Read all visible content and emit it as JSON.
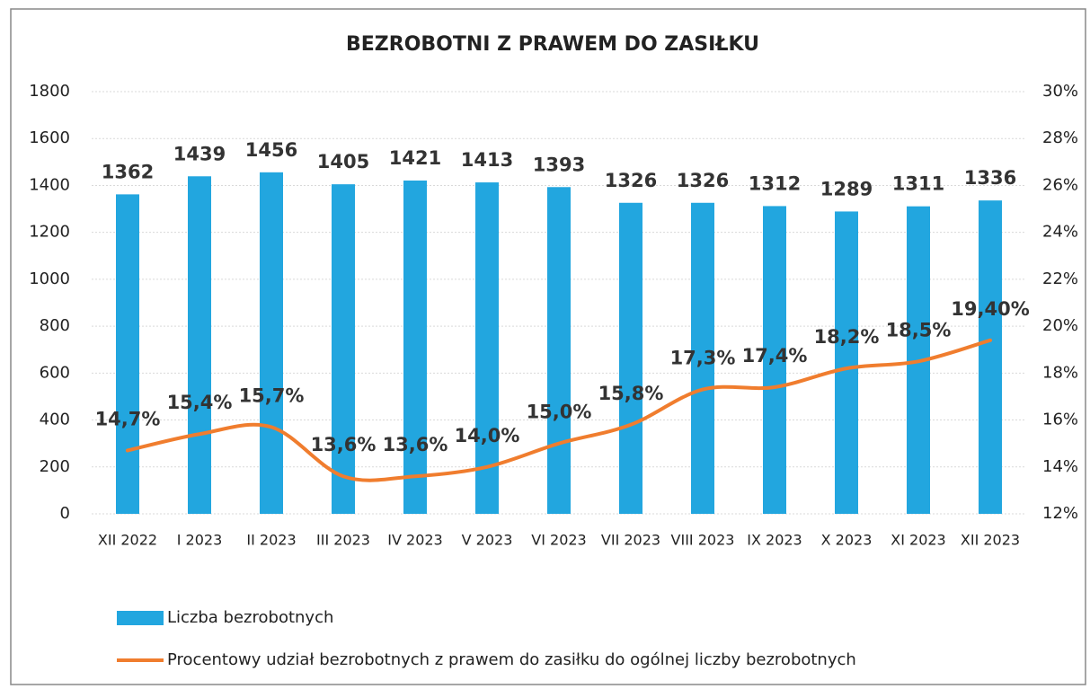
{
  "chart_data": {
    "type": "bar-line",
    "title": "BEZROBOTNI Z PRAWEM DO ZASIŁKU",
    "categories": [
      "XII 2022",
      "I 2023",
      "II 2023",
      "III 2023",
      "IV 2023",
      "V 2023",
      "VI 2023",
      "VII 2023",
      "VIII 2023",
      "IX 2023",
      "X 2023",
      "XI 2023",
      "XII 2023"
    ],
    "series": [
      {
        "name": "Liczba bezrobotnych",
        "type": "bar",
        "color": "#22a6df",
        "values": [
          1362,
          1439,
          1456,
          1405,
          1421,
          1413,
          1393,
          1326,
          1326,
          1312,
          1289,
          1311,
          1336
        ]
      },
      {
        "name": "Procentowy udział bezrobotnych z prawem do zasiłku do ogólnej liczby bezrobotnych",
        "type": "line",
        "axis": "y2",
        "color": "#f07d2e",
        "values": [
          14.7,
          15.4,
          15.7,
          13.6,
          13.6,
          14.0,
          15.0,
          15.8,
          17.3,
          17.4,
          18.2,
          18.5,
          19.4
        ],
        "value_labels": [
          "14,7%",
          "15,4%",
          "15,7%",
          "13,6%",
          "13,6%",
          "14,0%",
          "15,0%",
          "15,8%",
          "17,3%",
          "17,4%",
          "18,2%",
          "18,5%",
          "19,40%"
        ]
      }
    ],
    "ylim": [
      0,
      1800
    ],
    "yticks": [
      0,
      200,
      400,
      600,
      800,
      1000,
      1200,
      1400,
      1600,
      1800
    ],
    "y2lim": [
      12,
      30
    ],
    "y2ticks": [
      {
        "value": 12,
        "label": "12%"
      },
      {
        "value": 14,
        "label": "14%"
      },
      {
        "value": 16,
        "label": "16%"
      },
      {
        "value": 18,
        "label": "18%"
      },
      {
        "value": 20,
        "label": "20%"
      },
      {
        "value": 22,
        "label": "22%"
      },
      {
        "value": 24,
        "label": "24%"
      },
      {
        "value": 26,
        "label": "26%"
      },
      {
        "value": 28,
        "label": "28%"
      },
      {
        "value": 30,
        "label": "30%"
      }
    ],
    "grid": true,
    "legend": "bottom"
  }
}
